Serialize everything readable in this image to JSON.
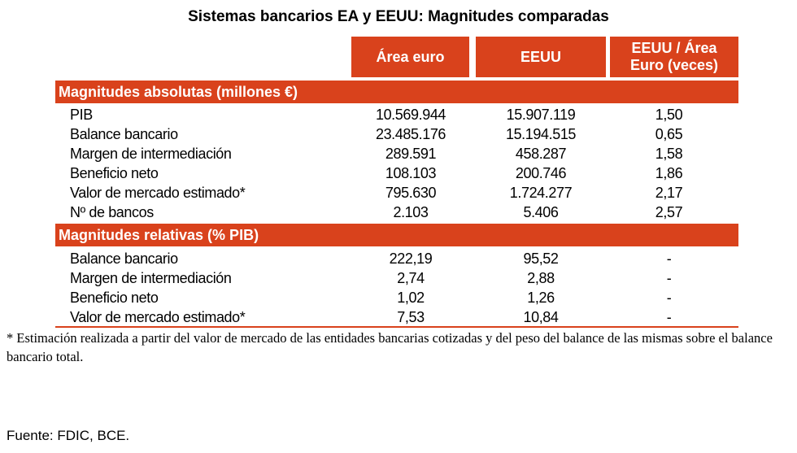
{
  "title": "Sistemas bancarios EA y EEUU: Magnitudes comparadas",
  "columns": {
    "c1": "Área euro",
    "c2": "EEUU",
    "c3_line1": "EEUU / Área",
    "c3_line2": "Euro (veces)"
  },
  "sections": {
    "absolute": {
      "label": "Magnitudes absolutas (millones €)",
      "rows": [
        {
          "label": "PIB",
          "ea": "10.569.944",
          "us": "15.907.119",
          "ratio": "1,50"
        },
        {
          "label": "Balance bancario",
          "ea": "23.485.176",
          "us": "15.194.515",
          "ratio": "0,65"
        },
        {
          "label": "Margen de intermediación",
          "ea": "289.591",
          "us": "458.287",
          "ratio": "1,58"
        },
        {
          "label": "Beneficio neto",
          "ea": "108.103",
          "us": "200.746",
          "ratio": "1,86"
        },
        {
          "label": "Valor de mercado estimado*",
          "ea": "795.630",
          "us": "1.724.277",
          "ratio": "2,17"
        },
        {
          "label": "Nº de bancos",
          "ea": "2.103",
          "us": "5.406",
          "ratio": "2,57"
        }
      ]
    },
    "relative": {
      "label": "Magnitudes relativas (% PIB)",
      "rows": [
        {
          "label": "Balance bancario",
          "ea": "222,19",
          "us": "95,52",
          "ratio": "-"
        },
        {
          "label": "Margen de intermediación",
          "ea": "2,74",
          "us": "2,88",
          "ratio": "-"
        },
        {
          "label": "Beneficio neto",
          "ea": "1,02",
          "us": "1,26",
          "ratio": "-"
        },
        {
          "label": "Valor de mercado estimado*",
          "ea": "7,53",
          "us": "10,84",
          "ratio": "-"
        }
      ]
    }
  },
  "note": "* Estimación realizada a partir del valor de mercado de las entidades bancarias cotizadas y del peso del balance de las mismas sobre el balance bancario total.",
  "source": "Fuente: FDIC, BCE."
}
